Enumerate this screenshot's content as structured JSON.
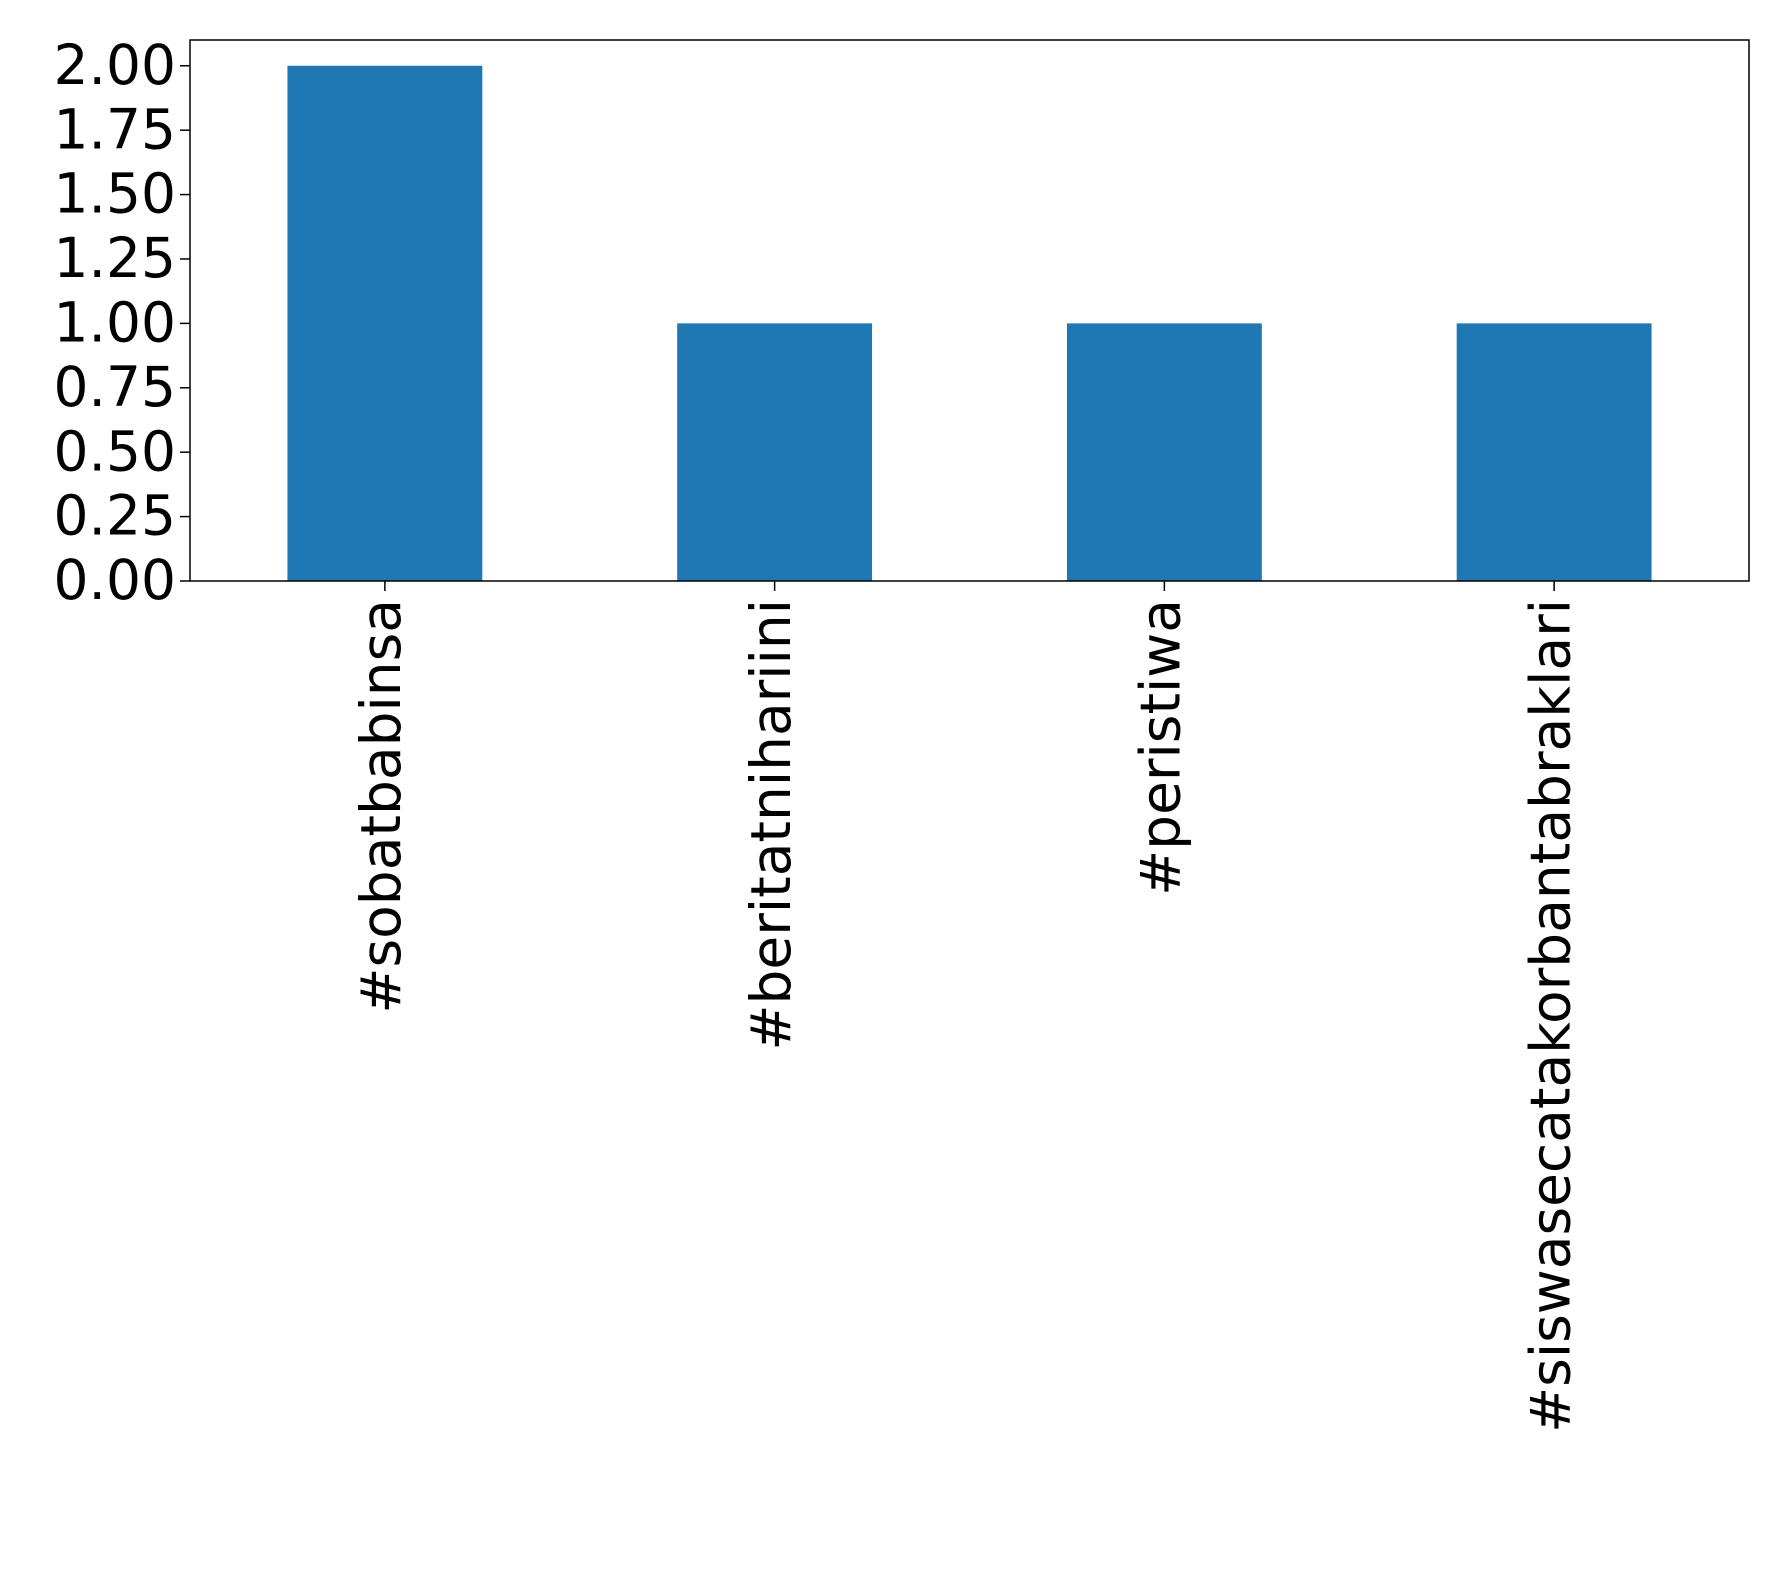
{
  "chart_data": {
    "type": "bar",
    "categories": [
      "#sobatbabinsa",
      "#beritatnihariini",
      "#peristiwa",
      "#siswasecatakorbantabraklari"
    ],
    "values": [
      2,
      1,
      1,
      1
    ],
    "color": "#1f77b4",
    "ylim": [
      0,
      2.1
    ],
    "yticks": [
      {
        "value": 0,
        "label": "0.00"
      },
      {
        "value": 0.25,
        "label": "0.25"
      },
      {
        "value": 0.5,
        "label": "0.50"
      },
      {
        "value": 0.75,
        "label": "0.75"
      },
      {
        "value": 1,
        "label": "1.00"
      },
      {
        "value": 1.25,
        "label": "1.25"
      },
      {
        "value": 1.5,
        "label": "1.50"
      },
      {
        "value": 1.75,
        "label": "1.75"
      },
      {
        "value": 2,
        "label": "2.00"
      }
    ],
    "grid": false
  }
}
